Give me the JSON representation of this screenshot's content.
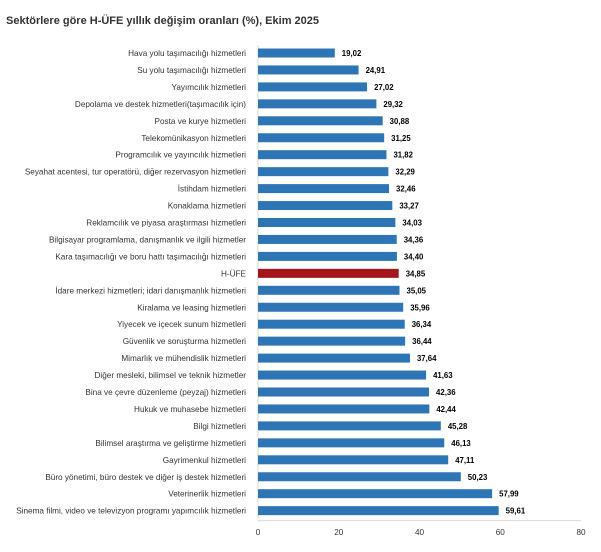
{
  "chart_data": {
    "type": "bar",
    "orientation": "horizontal",
    "title": "Sektörlere göre H-ÜFE yıllık değişim oranları (%), Ekim 2025",
    "xlabel": "",
    "ylabel": "",
    "xlim": [
      0,
      80
    ],
    "xticks": [
      0,
      20,
      40,
      60,
      80
    ],
    "grid": false,
    "legend": "none",
    "colors": {
      "default": "#2e75b6",
      "highlight": "#a6141d"
    },
    "highlight": "H-ÜFE",
    "categories": [
      "Hava yolu taşımacılığı hizmetleri",
      "Su yolu taşımacılığı hizmetleri",
      "Yayımcılık hizmetleri",
      "Depolama ve destek hizmetleri(taşımacılık için)",
      "Posta ve kurye hizmetleri",
      "Telekomünikasyon hizmetleri",
      "Programcılık ve yayıncılık hizmetleri",
      "Seyahat acentesi, tur operatörü, diğer rezervasyon hizmetleri",
      "İstihdam hizmetleri",
      "Konaklama hizmetleri",
      "Reklamcılık ve piyasa araştırması hizmetleri",
      "Bilgisayar programlama, danışmanlık ve ilgili hizmetler",
      "Kara taşımacılığı ve boru hattı taşımacılığı hizmetleri",
      "H-ÜFE",
      "İdare merkezi hizmetleri; idari danışmanlık hizmetleri",
      "Kiralama ve leasing hizmetleri",
      "Yiyecek ve içecek sunum hizmetleri",
      "Güvenlik ve soruşturma hizmetleri",
      "Mimarlık ve mühendislik hizmetleri",
      "Diğer mesleki, bilimsel ve teknik hizmetler",
      "Bina ve çevre düzenleme (peyzaj) hizmetleri",
      "Hukuk ve muhasebe hizmetleri",
      "Bilgi hizmetleri",
      "Bilimsel araştırma ve geliştirme hizmetleri",
      "Gayrimenkul hizmetleri",
      "Büro yönetimi, büro destek ve diğer iş destek hizmetleri",
      "Veterinerlik hizmetleri",
      "Sinema filmi, video ve televizyon programı yapımcılık hizmetleri"
    ],
    "values": [
      19.02,
      24.91,
      27.02,
      29.32,
      30.88,
      31.25,
      31.82,
      32.29,
      32.46,
      33.27,
      34.03,
      34.36,
      34.4,
      34.85,
      35.05,
      35.96,
      36.34,
      36.44,
      37.64,
      41.63,
      42.36,
      42.44,
      45.28,
      46.13,
      47.11,
      50.23,
      57.99,
      59.61
    ],
    "value_labels": [
      "19,02",
      "24,91",
      "27,02",
      "29,32",
      "30,88",
      "31,25",
      "31,82",
      "32,29",
      "32,46",
      "33,27",
      "34,03",
      "34,36",
      "34,40",
      "34,85",
      "35,05",
      "35,96",
      "36,34",
      "36,44",
      "37,64",
      "41,63",
      "42,36",
      "42,44",
      "45,28",
      "46,13",
      "47,11",
      "50,23",
      "57,99",
      "59,61"
    ]
  }
}
